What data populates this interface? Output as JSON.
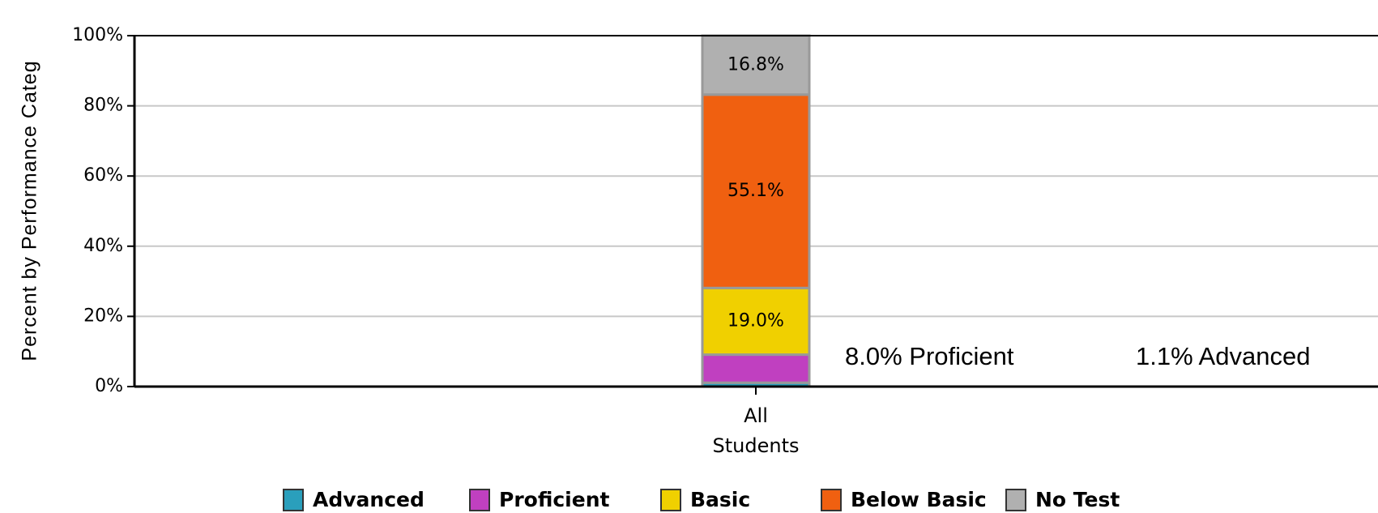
{
  "chart_data": {
    "type": "stacked_bar",
    "y_label": "Percent by Performance Categ",
    "categories": [
      "All Students"
    ],
    "series": [
      {
        "name": "Advanced",
        "color": "#2a9fbc",
        "values": [
          1.1
        ]
      },
      {
        "name": "Proficient",
        "color": "#c040c0",
        "values": [
          8.0
        ]
      },
      {
        "name": "Basic",
        "color": "#f0d000",
        "values": [
          19.0
        ],
        "value_labels": [
          "19.0%"
        ]
      },
      {
        "name": "Below Basic",
        "color": "#f06010",
        "values": [
          55.1
        ],
        "value_labels": [
          "55.1%"
        ]
      },
      {
        "name": "No Test",
        "color": "#b0b0b0",
        "values": [
          16.8
        ],
        "value_labels": [
          "16.8%"
        ]
      }
    ],
    "annotations": [
      "8.0% Proficient",
      "1.1% Advanced"
    ],
    "ylim": [
      0,
      100
    ],
    "yticks": [
      {
        "value": 0,
        "label": "0%"
      },
      {
        "value": 20,
        "label": "20%"
      },
      {
        "value": 40,
        "label": "40%"
      },
      {
        "value": 60,
        "label": "60%"
      },
      {
        "value": 80,
        "label": "80%"
      },
      {
        "value": 100,
        "label": "100%"
      }
    ],
    "grid": true,
    "legend": "bottom"
  }
}
